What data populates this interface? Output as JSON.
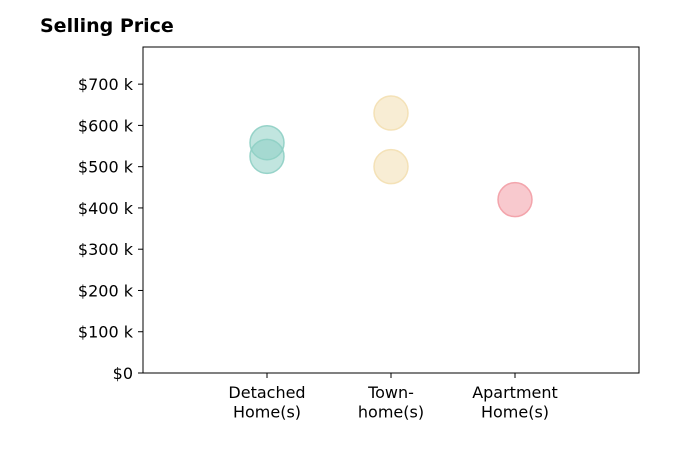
{
  "chart_data": {
    "type": "scatter",
    "title": "Selling Price",
    "xlabel": "",
    "ylabel": "",
    "categories": [
      [
        "Detached",
        "Home(s)"
      ],
      [
        "Town-",
        "home(s)"
      ],
      [
        "Apartment",
        "Home(s)"
      ]
    ],
    "ylim": [
      0,
      790
    ],
    "y_ticks": [
      0,
      100,
      200,
      300,
      400,
      500,
      600,
      700
    ],
    "y_tick_labels": [
      "$0",
      "$100 k",
      "$200 k",
      "$300 k",
      "$400 k",
      "$500 k",
      "$600 k",
      "$700 k"
    ],
    "grid": false,
    "legend": "none",
    "points": [
      {
        "category": 0,
        "y": 558,
        "color": "#8ecfc4"
      },
      {
        "category": 0,
        "y": 525,
        "color": "#8ecfc4"
      },
      {
        "category": 1,
        "y": 630,
        "color": "#f3dfb1"
      },
      {
        "category": 1,
        "y": 500,
        "color": "#f3dfb1"
      },
      {
        "category": 2,
        "y": 420,
        "color": "#f29da5"
      }
    ]
  }
}
